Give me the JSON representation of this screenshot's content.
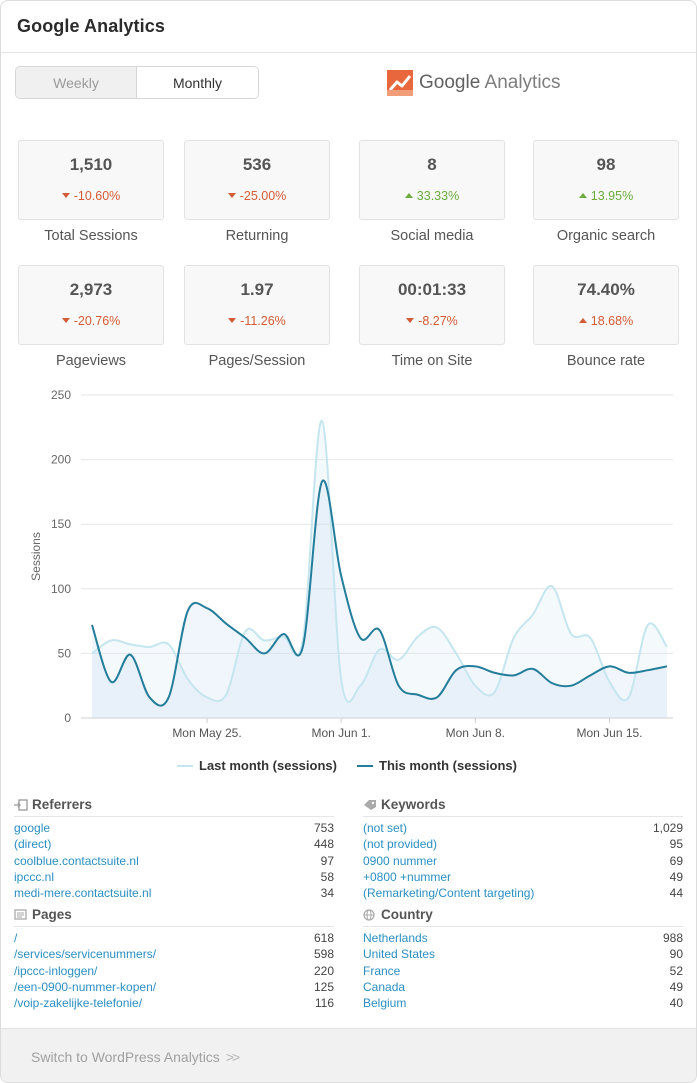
{
  "header": {
    "title": "Google Analytics"
  },
  "toggle": {
    "weekly": "Weekly",
    "monthly": "Monthly"
  },
  "logo": {
    "google": "Google",
    "analytics": "Analytics",
    "brand_color": "#e8673c"
  },
  "stats": [
    {
      "value": "1,510",
      "change": "-10.60%",
      "direction": "down",
      "label": "Total Sessions"
    },
    {
      "value": "536",
      "change": "-25.00%",
      "direction": "down",
      "label": "Returning"
    },
    {
      "value": "8",
      "change": "33.33%",
      "direction": "up-green",
      "label": "Social media"
    },
    {
      "value": "98",
      "change": "13.95%",
      "direction": "up-green",
      "label": "Organic search"
    },
    {
      "value": "2,973",
      "change": "-20.76%",
      "direction": "down",
      "label": "Pageviews"
    },
    {
      "value": "1.97",
      "change": "-11.26%",
      "direction": "down",
      "label": "Pages/Session"
    },
    {
      "value": "00:01:33",
      "change": "-8.27%",
      "direction": "down",
      "label": "Time on Site"
    },
    {
      "value": "74.40%",
      "change": "18.68%",
      "direction": "up-red",
      "label": "Bounce rate"
    }
  ],
  "chart_data": {
    "type": "line",
    "ylabel": "Sessions",
    "ylim": [
      0,
      250
    ],
    "yticks": [
      0,
      50,
      100,
      150,
      200,
      250
    ],
    "x_tick_labels": [
      {
        "index": 6,
        "label": "Mon May 25."
      },
      {
        "index": 13,
        "label": "Mon Jun 1."
      },
      {
        "index": 20,
        "label": "Mon Jun 8."
      },
      {
        "index": 27,
        "label": "Mon Jun 15."
      }
    ],
    "series": [
      {
        "name": "Last month (sessions)",
        "color": "#c5e6ef",
        "values": [
          50,
          60,
          57,
          55,
          57,
          30,
          16,
          18,
          67,
          60,
          63,
          60,
          230,
          30,
          25,
          53,
          45,
          63,
          70,
          50,
          25,
          20,
          62,
          80,
          102,
          65,
          62,
          28,
          16,
          72,
          55
        ]
      },
      {
        "name": "This month (sessions)",
        "color": "#237d9b",
        "values": [
          72,
          28,
          49,
          16,
          16,
          83,
          85,
          73,
          62,
          50,
          65,
          55,
          183,
          110,
          62,
          68,
          25,
          18,
          16,
          37,
          40,
          35,
          33,
          38,
          27,
          25,
          33,
          40,
          35,
          37,
          40
        ]
      }
    ]
  },
  "referrers": {
    "title": "Referrers",
    "rows": [
      {
        "name": "google",
        "value": "753"
      },
      {
        "name": "(direct)",
        "value": "448"
      },
      {
        "name": "coolblue.contactsuite.nl",
        "value": "97"
      },
      {
        "name": "ipccc.nl",
        "value": "58"
      },
      {
        "name": "medi-mere.contactsuite.nl",
        "value": "34"
      }
    ]
  },
  "keywords": {
    "title": "Keywords",
    "rows": [
      {
        "name": "(not set)",
        "value": "1,029"
      },
      {
        "name": "(not provided)",
        "value": "95"
      },
      {
        "name": "0900 nummer",
        "value": "69"
      },
      {
        "name": "+0800 +nummer",
        "value": "49"
      },
      {
        "name": "(Remarketing/Content targeting)",
        "value": "44"
      }
    ]
  },
  "pages": {
    "title": "Pages",
    "rows": [
      {
        "name": "/",
        "value": "618"
      },
      {
        "name": "/services/servicenummers/",
        "value": "598"
      },
      {
        "name": "/ipccc-inloggen/",
        "value": "220"
      },
      {
        "name": "/een-0900-nummer-kopen/",
        "value": "125"
      },
      {
        "name": "/voip-zakelijke-telefonie/",
        "value": "116"
      }
    ]
  },
  "country": {
    "title": "Country",
    "rows": [
      {
        "name": "Netherlands",
        "value": "988"
      },
      {
        "name": "United States",
        "value": "90"
      },
      {
        "name": "France",
        "value": "52"
      },
      {
        "name": "Canada",
        "value": "49"
      },
      {
        "name": "Belgium",
        "value": "40"
      }
    ]
  },
  "footer": {
    "link": "Switch to WordPress Analytics",
    "chevron": ">>"
  }
}
